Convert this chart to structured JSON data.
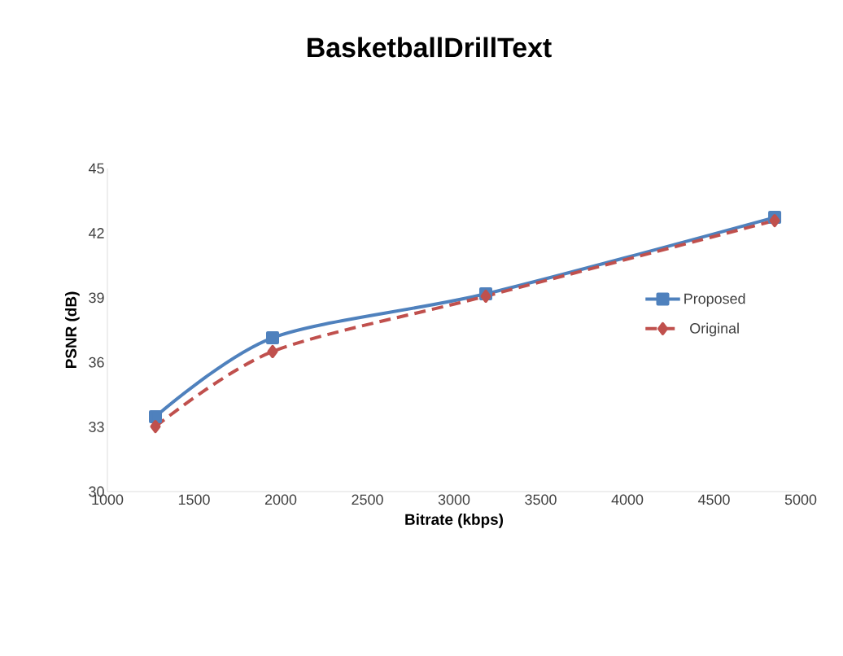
{
  "chart_data": {
    "type": "line",
    "title": "BasketballDrillText",
    "xlabel": "Bitrate (kbps)",
    "ylabel": "PSNR (dB)",
    "x": [
      1277,
      1953,
      3183,
      4850
    ],
    "series": [
      {
        "name": "Proposed",
        "color": "#4f81bd",
        "values": [
          33.48,
          37.14,
          39.18,
          42.73
        ],
        "marker": "square",
        "line_style": "solid"
      },
      {
        "name": "Original",
        "color": "#c0504d",
        "values": [
          33.02,
          36.5,
          39.07,
          42.58
        ],
        "marker": "diamond",
        "line_style": "dashed"
      }
    ],
    "xlim": [
      1000,
      5000
    ],
    "xticks": [
      1000,
      1500,
      2000,
      2500,
      3000,
      3500,
      4000,
      4500,
      5000
    ],
    "ylim": [
      30,
      45
    ],
    "yticks": [
      30,
      33,
      36,
      39,
      42,
      45
    ],
    "grid": false,
    "legend": "right"
  }
}
